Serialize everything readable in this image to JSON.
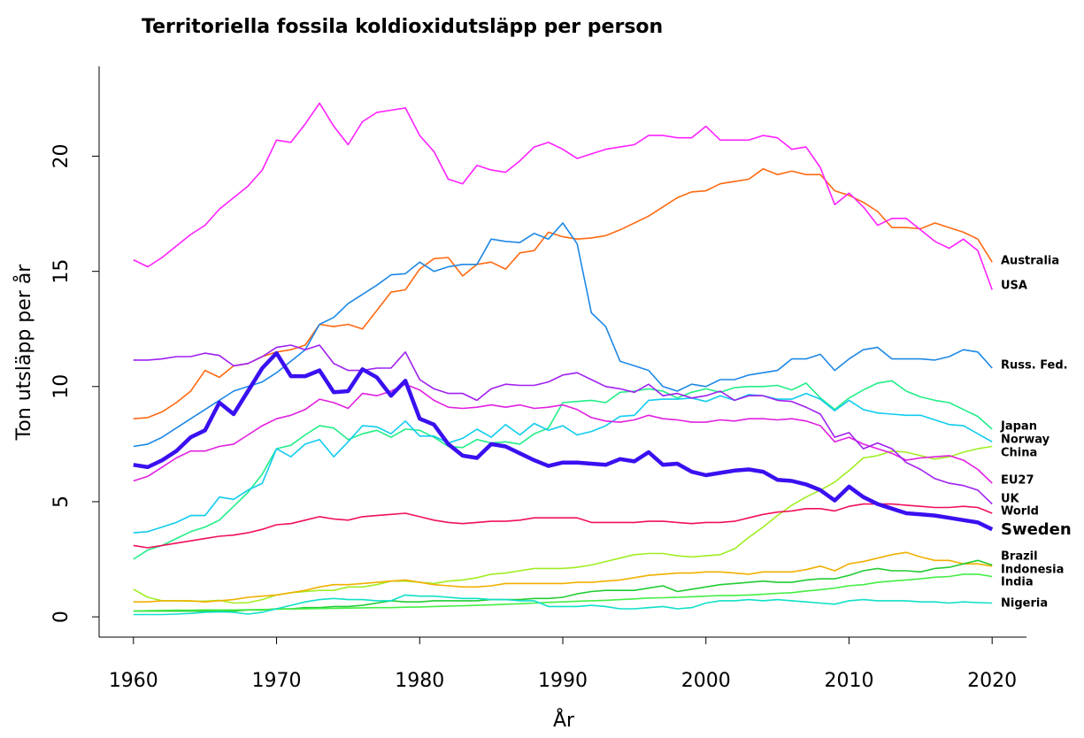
{
  "chart_data": {
    "type": "line",
    "title": "Territoriella fossila koldioxidutsläpp per person",
    "x_label": "År",
    "y_label": "Ton utsläpp per år",
    "highlight": "Sweden",
    "x": [
      1960,
      1961,
      1962,
      1963,
      1964,
      1965,
      1966,
      1967,
      1968,
      1969,
      1970,
      1971,
      1972,
      1973,
      1974,
      1975,
      1976,
      1977,
      1978,
      1979,
      1980,
      1981,
      1982,
      1983,
      1984,
      1985,
      1986,
      1987,
      1988,
      1989,
      1990,
      1991,
      1992,
      1993,
      1994,
      1995,
      1996,
      1997,
      1998,
      1999,
      2000,
      2001,
      2002,
      2003,
      2004,
      2005,
      2006,
      2007,
      2008,
      2009,
      2010,
      2011,
      2012,
      2013,
      2014,
      2015,
      2016,
      2017,
      2018,
      2019,
      2020
    ],
    "xlim": [
      1957.6,
      2022.4
    ],
    "xticks": [
      1960,
      1970,
      1980,
      1990,
      2000,
      2010,
      2020
    ],
    "ylim": [
      -0.88,
      23.9
    ],
    "yticks": [
      0,
      5,
      10,
      15,
      20
    ],
    "series": [
      {
        "name": "Australia",
        "color": "#ff6a13",
        "values": [
          8.6,
          8.65,
          8.9,
          9.3,
          9.8,
          10.7,
          10.4,
          10.9,
          11.0,
          11.3,
          11.5,
          11.6,
          11.8,
          12.7,
          12.6,
          12.7,
          12.5,
          13.3,
          14.1,
          14.2,
          15.1,
          15.55,
          15.6,
          14.8,
          15.3,
          15.4,
          15.1,
          15.8,
          15.9,
          16.7,
          16.5,
          16.4,
          16.45,
          16.55,
          16.8,
          17.1,
          17.4,
          17.8,
          18.2,
          18.45,
          18.5,
          18.8,
          18.9,
          19.0,
          19.45,
          19.2,
          19.35,
          19.2,
          19.2,
          18.5,
          18.3,
          18.0,
          17.6,
          16.9,
          16.9,
          16.85,
          17.1,
          16.9,
          16.7,
          16.4,
          15.4
        ]
      },
      {
        "name": "USA",
        "color": "#ff22ff",
        "values": [
          15.5,
          15.2,
          15.6,
          16.1,
          16.6,
          17.0,
          17.7,
          18.2,
          18.7,
          19.4,
          20.7,
          20.6,
          21.4,
          22.3,
          21.3,
          20.5,
          21.5,
          21.9,
          22.0,
          22.1,
          20.9,
          20.2,
          19.0,
          18.8,
          19.6,
          19.4,
          19.3,
          19.8,
          20.4,
          20.6,
          20.3,
          19.9,
          20.1,
          20.3,
          20.4,
          20.5,
          20.9,
          20.9,
          20.8,
          20.8,
          21.3,
          20.7,
          20.7,
          20.7,
          20.9,
          20.8,
          20.3,
          20.4,
          19.5,
          17.9,
          18.4,
          17.8,
          17.0,
          17.3,
          17.3,
          16.8,
          16.3,
          16.0,
          16.4,
          15.9,
          14.2
        ]
      },
      {
        "name": "Russ. Fed.",
        "color": "#1e88e5",
        "values": [
          7.4,
          7.5,
          7.8,
          8.2,
          8.6,
          9.0,
          9.4,
          9.8,
          10.0,
          10.2,
          10.6,
          11.1,
          11.6,
          12.7,
          13.0,
          13.6,
          14.0,
          14.4,
          14.85,
          14.9,
          15.4,
          15.0,
          15.2,
          15.3,
          15.3,
          16.4,
          16.3,
          16.25,
          16.65,
          16.4,
          17.1,
          16.2,
          13.2,
          12.6,
          11.1,
          10.9,
          10.7,
          10.0,
          9.8,
          10.1,
          10.0,
          10.3,
          10.3,
          10.5,
          10.6,
          10.7,
          11.2,
          11.2,
          11.4,
          10.7,
          11.2,
          11.6,
          11.7,
          11.2,
          11.2,
          11.2,
          11.15,
          11.3,
          11.6,
          11.5,
          10.8
        ]
      },
      {
        "name": "Japan",
        "color": "#22ee88",
        "values": [
          2.5,
          2.9,
          3.1,
          3.4,
          3.7,
          3.9,
          4.2,
          4.8,
          5.4,
          6.2,
          7.3,
          7.45,
          7.9,
          8.3,
          8.2,
          7.7,
          7.95,
          8.1,
          7.8,
          8.15,
          8.1,
          7.8,
          7.4,
          7.35,
          7.7,
          7.55,
          7.6,
          7.5,
          7.95,
          8.2,
          9.3,
          9.35,
          9.4,
          9.3,
          9.75,
          9.8,
          9.9,
          9.8,
          9.5,
          9.75,
          9.9,
          9.75,
          9.95,
          10.0,
          10.0,
          10.05,
          9.85,
          10.15,
          9.5,
          9.0,
          9.5,
          9.85,
          10.15,
          10.25,
          9.8,
          9.55,
          9.4,
          9.3,
          9.0,
          8.7,
          8.15
        ]
      },
      {
        "name": "Norway",
        "color": "#11ccee",
        "values": [
          3.65,
          3.7,
          3.9,
          4.1,
          4.4,
          4.4,
          5.2,
          5.1,
          5.5,
          5.8,
          7.3,
          6.95,
          7.5,
          7.7,
          6.95,
          7.6,
          8.3,
          8.25,
          7.95,
          8.5,
          7.85,
          7.85,
          7.55,
          7.75,
          8.15,
          7.8,
          8.35,
          7.9,
          8.4,
          8.1,
          8.3,
          7.9,
          8.05,
          8.3,
          8.7,
          8.75,
          9.4,
          9.45,
          9.45,
          9.5,
          9.35,
          9.6,
          9.4,
          9.65,
          9.6,
          9.45,
          9.45,
          9.7,
          9.45,
          8.95,
          9.4,
          9.0,
          8.85,
          8.8,
          8.75,
          8.75,
          8.55,
          8.35,
          8.3,
          7.95,
          7.6
        ]
      },
      {
        "name": "China",
        "color": "#a0ee22",
        "values": [
          1.2,
          0.85,
          0.7,
          0.7,
          0.68,
          0.68,
          0.72,
          0.6,
          0.62,
          0.75,
          0.95,
          1.05,
          1.1,
          1.15,
          1.15,
          1.3,
          1.3,
          1.4,
          1.55,
          1.55,
          1.5,
          1.45,
          1.55,
          1.6,
          1.7,
          1.85,
          1.9,
          2.0,
          2.1,
          2.1,
          2.1,
          2.15,
          2.25,
          2.4,
          2.55,
          2.7,
          2.75,
          2.75,
          2.65,
          2.6,
          2.65,
          2.7,
          2.95,
          3.45,
          3.9,
          4.4,
          4.85,
          5.2,
          5.5,
          5.85,
          6.35,
          6.9,
          7.0,
          7.2,
          7.15,
          7.0,
          6.85,
          6.95,
          7.15,
          7.3,
          7.4
        ]
      },
      {
        "name": "EU27",
        "color": "#e020e0",
        "values": [
          5.9,
          6.1,
          6.5,
          6.9,
          7.2,
          7.2,
          7.4,
          7.5,
          7.9,
          8.3,
          8.6,
          8.75,
          9.0,
          9.45,
          9.3,
          9.05,
          9.7,
          9.6,
          9.8,
          10.1,
          9.85,
          9.4,
          9.1,
          9.05,
          9.1,
          9.2,
          9.1,
          9.2,
          9.05,
          9.1,
          9.2,
          9.0,
          8.65,
          8.5,
          8.45,
          8.55,
          8.75,
          8.6,
          8.55,
          8.45,
          8.45,
          8.55,
          8.5,
          8.6,
          8.6,
          8.55,
          8.6,
          8.5,
          8.3,
          7.6,
          7.8,
          7.5,
          7.3,
          7.1,
          6.8,
          6.9,
          6.95,
          7.0,
          6.8,
          6.4,
          5.8
        ]
      },
      {
        "name": "UK",
        "color": "#a020f0",
        "values": [
          11.15,
          11.15,
          11.2,
          11.3,
          11.3,
          11.45,
          11.35,
          10.9,
          11.0,
          11.3,
          11.7,
          11.8,
          11.6,
          11.8,
          11.0,
          10.7,
          10.7,
          10.8,
          10.8,
          11.5,
          10.3,
          9.9,
          9.7,
          9.7,
          9.4,
          9.9,
          10.1,
          10.05,
          10.05,
          10.2,
          10.5,
          10.6,
          10.3,
          10.0,
          9.9,
          9.75,
          10.1,
          9.6,
          9.7,
          9.5,
          9.6,
          9.8,
          9.4,
          9.6,
          9.6,
          9.4,
          9.35,
          9.1,
          8.8,
          7.8,
          8.0,
          7.3,
          7.55,
          7.3,
          6.7,
          6.4,
          6.0,
          5.8,
          5.7,
          5.5,
          4.9
        ]
      },
      {
        "name": "World",
        "color": "#f0105a",
        "values": [
          3.1,
          3.0,
          3.1,
          3.2,
          3.3,
          3.4,
          3.5,
          3.55,
          3.65,
          3.8,
          4.0,
          4.05,
          4.2,
          4.35,
          4.25,
          4.2,
          4.35,
          4.4,
          4.45,
          4.5,
          4.35,
          4.2,
          4.1,
          4.05,
          4.1,
          4.15,
          4.15,
          4.2,
          4.3,
          4.3,
          4.3,
          4.3,
          4.1,
          4.1,
          4.1,
          4.1,
          4.15,
          4.15,
          4.1,
          4.05,
          4.1,
          4.1,
          4.15,
          4.3,
          4.45,
          4.55,
          4.6,
          4.7,
          4.7,
          4.6,
          4.8,
          4.9,
          4.9,
          4.9,
          4.85,
          4.8,
          4.75,
          4.75,
          4.8,
          4.75,
          4.5
        ]
      },
      {
        "name": "Sweden",
        "color": "#3a10f0",
        "values": [
          6.6,
          6.5,
          6.8,
          7.2,
          7.8,
          8.1,
          9.3,
          8.8,
          9.8,
          10.8,
          11.45,
          10.45,
          10.45,
          10.7,
          9.75,
          9.8,
          10.75,
          10.4,
          9.6,
          10.25,
          8.6,
          8.35,
          7.5,
          7.0,
          6.9,
          7.5,
          7.4,
          7.1,
          6.8,
          6.55,
          6.7,
          6.7,
          6.65,
          6.6,
          6.85,
          6.75,
          7.15,
          6.6,
          6.65,
          6.3,
          6.15,
          6.25,
          6.35,
          6.4,
          6.3,
          5.95,
          5.9,
          5.75,
          5.5,
          5.05,
          5.65,
          5.2,
          4.9,
          4.7,
          4.5,
          4.45,
          4.4,
          4.3,
          4.2,
          4.1,
          3.8
        ]
      },
      {
        "name": "Brazil",
        "color": "#f0b000",
        "values": [
          0.65,
          0.65,
          0.7,
          0.7,
          0.7,
          0.65,
          0.7,
          0.75,
          0.85,
          0.9,
          0.95,
          1.05,
          1.15,
          1.3,
          1.4,
          1.4,
          1.45,
          1.5,
          1.55,
          1.6,
          1.5,
          1.4,
          1.35,
          1.3,
          1.3,
          1.35,
          1.45,
          1.45,
          1.45,
          1.45,
          1.45,
          1.5,
          1.5,
          1.55,
          1.6,
          1.7,
          1.8,
          1.85,
          1.9,
          1.9,
          1.95,
          1.95,
          1.9,
          1.85,
          1.95,
          1.95,
          1.95,
          2.05,
          2.2,
          2.0,
          2.3,
          2.4,
          2.55,
          2.7,
          2.8,
          2.6,
          2.45,
          2.45,
          2.3,
          2.3,
          2.2
        ]
      },
      {
        "name": "Indonesia",
        "color": "#22cc33",
        "values": [
          0.25,
          0.25,
          0.25,
          0.25,
          0.25,
          0.25,
          0.25,
          0.25,
          0.3,
          0.3,
          0.35,
          0.35,
          0.4,
          0.4,
          0.45,
          0.45,
          0.5,
          0.6,
          0.7,
          0.65,
          0.65,
          0.7,
          0.7,
          0.7,
          0.7,
          0.75,
          0.75,
          0.75,
          0.8,
          0.8,
          0.85,
          1.0,
          1.1,
          1.15,
          1.15,
          1.15,
          1.25,
          1.35,
          1.1,
          1.2,
          1.3,
          1.4,
          1.45,
          1.5,
          1.55,
          1.5,
          1.5,
          1.6,
          1.65,
          1.65,
          1.8,
          2.0,
          2.1,
          2.0,
          2.0,
          1.95,
          2.1,
          2.15,
          2.3,
          2.45,
          2.25
        ]
      },
      {
        "name": "India",
        "color": "#44ee44",
        "values": [
          0.25,
          0.27,
          0.28,
          0.29,
          0.29,
          0.3,
          0.3,
          0.3,
          0.31,
          0.32,
          0.33,
          0.34,
          0.35,
          0.36,
          0.37,
          0.38,
          0.39,
          0.4,
          0.4,
          0.42,
          0.43,
          0.45,
          0.47,
          0.48,
          0.5,
          0.52,
          0.55,
          0.57,
          0.6,
          0.63,
          0.65,
          0.68,
          0.7,
          0.72,
          0.75,
          0.78,
          0.82,
          0.83,
          0.85,
          0.87,
          0.9,
          0.92,
          0.93,
          0.95,
          0.98,
          1.02,
          1.05,
          1.12,
          1.18,
          1.25,
          1.35,
          1.4,
          1.5,
          1.55,
          1.6,
          1.65,
          1.72,
          1.75,
          1.85,
          1.85,
          1.75
        ]
      },
      {
        "name": "Nigeria",
        "color": "#10e0c8",
        "values": [
          0.1,
          0.1,
          0.1,
          0.12,
          0.15,
          0.2,
          0.22,
          0.2,
          0.12,
          0.2,
          0.35,
          0.5,
          0.65,
          0.75,
          0.8,
          0.75,
          0.75,
          0.7,
          0.7,
          0.95,
          0.9,
          0.9,
          0.85,
          0.8,
          0.8,
          0.75,
          0.75,
          0.7,
          0.7,
          0.45,
          0.45,
          0.45,
          0.5,
          0.45,
          0.35,
          0.35,
          0.4,
          0.45,
          0.35,
          0.4,
          0.6,
          0.7,
          0.7,
          0.75,
          0.7,
          0.75,
          0.7,
          0.65,
          0.6,
          0.55,
          0.7,
          0.75,
          0.7,
          0.7,
          0.7,
          0.65,
          0.65,
          0.6,
          0.65,
          0.62,
          0.6
        ]
      }
    ]
  }
}
